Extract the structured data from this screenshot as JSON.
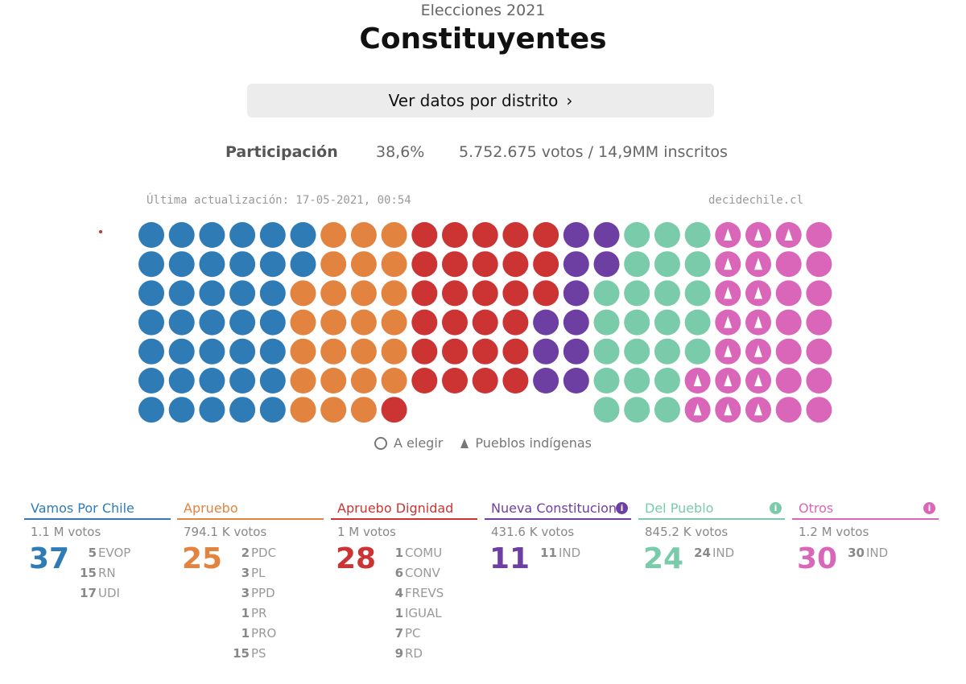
{
  "header": {
    "subtitle": "Elecciones 2021",
    "title": "Constituyentes",
    "district_button": "Ver datos por distrito"
  },
  "participation": {
    "label": "Participación",
    "percent": "38,6%",
    "votes": "5.752.675 votos / 14,9MM inscritos"
  },
  "updated": "Última actualización: 17-05-2021, 00:54",
  "source": "decidechile.cl",
  "legend": {
    "pending": "A elegir",
    "indigenous": "Pueblos indígenas"
  },
  "colors": {
    "vamos": "#2e7bb5",
    "apruebo": "#e2843f",
    "dignidad": "#cc3333",
    "nueva": "#6e3fa3",
    "pueblo": "#79cba9",
    "otros": "#d966b8"
  },
  "coalitions": [
    {
      "name": "Vamos Por Chile",
      "votes": "1.1 M votos",
      "total": "37",
      "color": "#2e7bb5",
      "info": false,
      "parties": [
        {
          "n": "5",
          "p": "EVOP"
        },
        {
          "n": "15",
          "p": "RN"
        },
        {
          "n": "17",
          "p": "UDI"
        }
      ]
    },
    {
      "name": "Apruebo",
      "votes": "794.1 K votos",
      "total": "25",
      "color": "#e2843f",
      "info": false,
      "parties": [
        {
          "n": "2",
          "p": "PDC"
        },
        {
          "n": "3",
          "p": "PL"
        },
        {
          "n": "3",
          "p": "PPD"
        },
        {
          "n": "1",
          "p": "PR"
        },
        {
          "n": "1",
          "p": "PRO"
        },
        {
          "n": "15",
          "p": "PS"
        }
      ]
    },
    {
      "name": "Apruebo Dignidad",
      "votes": "1 M votos",
      "total": "28",
      "color": "#cc3333",
      "info": false,
      "parties": [
        {
          "n": "1",
          "p": "COMU"
        },
        {
          "n": "6",
          "p": "CONV"
        },
        {
          "n": "4",
          "p": "FREVS"
        },
        {
          "n": "1",
          "p": "IGUAL"
        },
        {
          "n": "7",
          "p": "PC"
        },
        {
          "n": "9",
          "p": "RD"
        }
      ]
    },
    {
      "name": "Nueva Constitucion",
      "votes": "431.6 K votos",
      "total": "11",
      "color": "#6e3fa3",
      "info": true,
      "parties": [
        {
          "n": "11",
          "p": "IND"
        }
      ]
    },
    {
      "name": "Del Pueblo",
      "votes": "845.2 K votos",
      "total": "24",
      "color": "#79cba9",
      "info": true,
      "parties": [
        {
          "n": "24",
          "p": "IND"
        }
      ]
    },
    {
      "name": "Otros",
      "votes": "1.2 M votos",
      "total": "30",
      "color": "#d966b8",
      "info": true,
      "parties": [
        {
          "n": "30",
          "p": "IND"
        }
      ]
    }
  ],
  "chart_data": {
    "type": "waffle",
    "rows": 7,
    "total_seats": 155,
    "series": [
      {
        "name": "Vamos Por Chile",
        "seats": 37,
        "color": "#2e7bb5"
      },
      {
        "name": "Apruebo",
        "seats": 25,
        "color": "#e2843f"
      },
      {
        "name": "Apruebo Dignidad",
        "seats": 28,
        "color": "#cc3333"
      },
      {
        "name": "Nueva Constitucion",
        "seats": 11,
        "color": "#6e3fa3"
      },
      {
        "name": "Del Pueblo",
        "seats": 24,
        "color": "#79cba9"
      },
      {
        "name": "Otros",
        "seats": 30,
        "color": "#d966b8",
        "indigenous_seats": 17
      }
    ]
  }
}
